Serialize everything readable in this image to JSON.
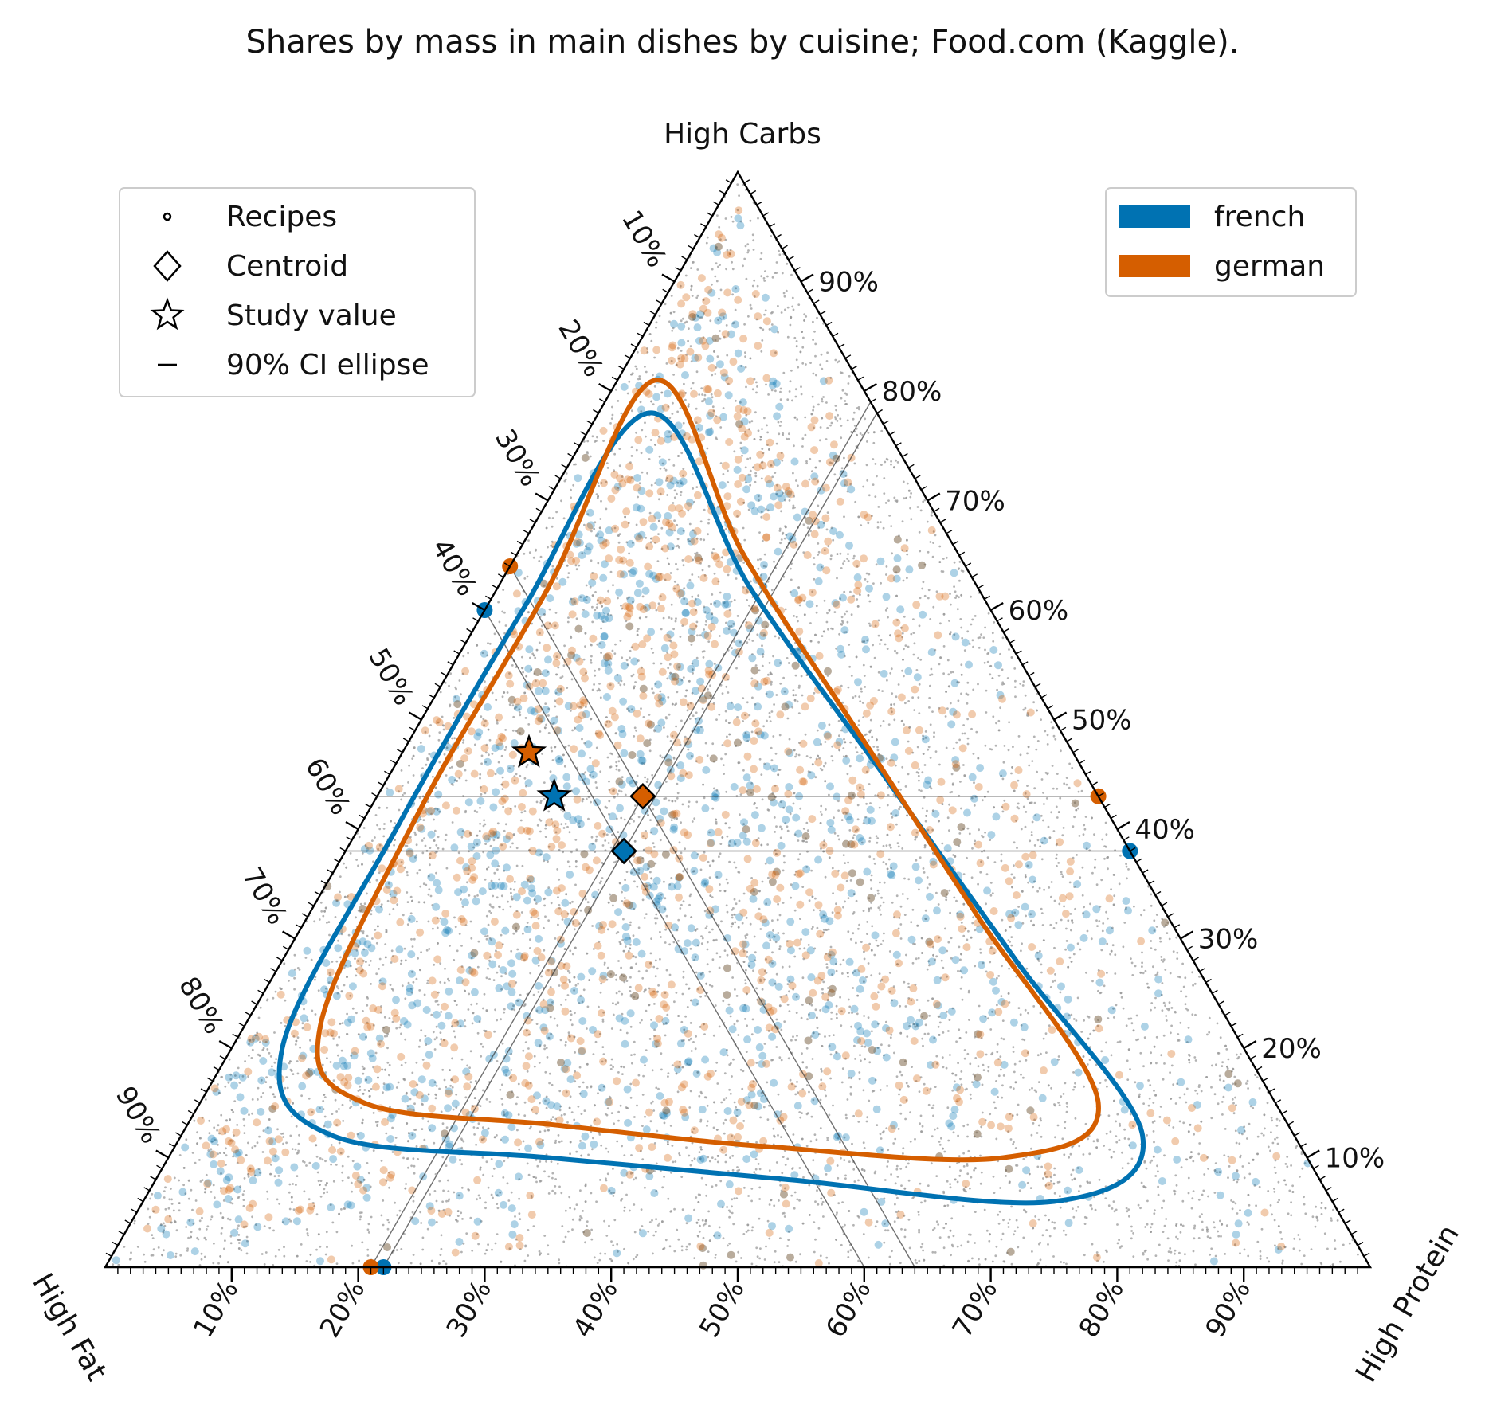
{
  "chart_data": {
    "type": "scatter",
    "subtype": "ternary",
    "title": "Shares by mass in main dishes by cuisine; Food.com (Kaggle).",
    "corners": {
      "top": "High Carbs",
      "left": "High Fat",
      "right": "High Protein"
    },
    "tick_labels": [
      "10%",
      "20%",
      "30%",
      "40%",
      "50%",
      "60%",
      "70%",
      "80%",
      "90%"
    ],
    "grid": false,
    "legend_markers": {
      "placement": "top-left",
      "entries": [
        "Recipes",
        "Centroid",
        "Study value",
        "90% CI ellipse"
      ]
    },
    "legend_series": {
      "placement": "top-right"
    },
    "colors": {
      "french": "#0072b2",
      "german": "#d55e00",
      "background_points": "#9a9a9a"
    },
    "series": [
      {
        "name": "french",
        "color": "#0072b2",
        "centroid": {
          "carbs": 0.38,
          "fat": 0.4,
          "protein": 0.22
        },
        "study_value": {
          "carbs": 0.43,
          "fat": 0.43,
          "protein": 0.14
        },
        "ellipse_90": [
          {
            "carbs": 0.78,
            "fat": 0.18,
            "protein": 0.04
          },
          {
            "carbs": 0.62,
            "fat": 0.18,
            "protein": 0.2
          },
          {
            "carbs": 0.45,
            "fat": 0.16,
            "protein": 0.39
          },
          {
            "carbs": 0.28,
            "fat": 0.14,
            "protein": 0.58
          },
          {
            "carbs": 0.12,
            "fat": 0.12,
            "protein": 0.76
          },
          {
            "carbs": 0.06,
            "fat": 0.22,
            "protein": 0.72
          },
          {
            "carbs": 0.08,
            "fat": 0.42,
            "protein": 0.5
          },
          {
            "carbs": 0.1,
            "fat": 0.6,
            "protein": 0.3
          },
          {
            "carbs": 0.12,
            "fat": 0.76,
            "protein": 0.12
          },
          {
            "carbs": 0.2,
            "fat": 0.76,
            "protein": 0.04
          },
          {
            "carbs": 0.4,
            "fat": 0.57,
            "protein": 0.03
          },
          {
            "carbs": 0.6,
            "fat": 0.37,
            "protein": 0.03
          }
        ],
        "n_points": 1150
      },
      {
        "name": "german",
        "color": "#d55e00",
        "centroid": {
          "carbs": 0.43,
          "fat": 0.36,
          "protein": 0.21
        },
        "study_value": {
          "carbs": 0.47,
          "fat": 0.43,
          "protein": 0.1
        },
        "ellipse_90": [
          {
            "carbs": 0.81,
            "fat": 0.16,
            "protein": 0.03
          },
          {
            "carbs": 0.65,
            "fat": 0.17,
            "protein": 0.18
          },
          {
            "carbs": 0.48,
            "fat": 0.16,
            "protein": 0.36
          },
          {
            "carbs": 0.32,
            "fat": 0.15,
            "protein": 0.53
          },
          {
            "carbs": 0.15,
            "fat": 0.14,
            "protein": 0.71
          },
          {
            "carbs": 0.1,
            "fat": 0.24,
            "protein": 0.66
          },
          {
            "carbs": 0.11,
            "fat": 0.42,
            "protein": 0.47
          },
          {
            "carbs": 0.13,
            "fat": 0.58,
            "protein": 0.29
          },
          {
            "carbs": 0.15,
            "fat": 0.72,
            "protein": 0.13
          },
          {
            "carbs": 0.22,
            "fat": 0.72,
            "protein": 0.06
          },
          {
            "carbs": 0.42,
            "fat": 0.54,
            "protein": 0.04
          },
          {
            "carbs": 0.62,
            "fat": 0.34,
            "protein": 0.04
          }
        ],
        "n_points": 1050
      }
    ],
    "background": {
      "n_points": 7000
    }
  }
}
